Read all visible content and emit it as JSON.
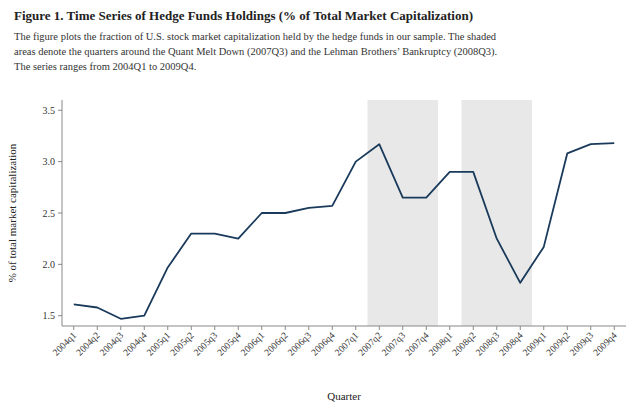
{
  "chart_data": {
    "type": "line",
    "title": "Figure 1. Time Series of Hedge Funds Holdings (% of Total Market Capitalization)",
    "caption": [
      "The figure plots the fraction of U.S. stock market capitalization held by the hedge funds in our sample. The shaded",
      "areas denote the quarters around the Quant Melt Down (2007Q3) and the Lehman Brothers’ Bankruptcy (2008Q3).",
      "The series ranges from 2004Q1 to 2009Q4."
    ],
    "x_label": "Quarter",
    "y_label": "% of total market capitalization",
    "categories": [
      "2004q1",
      "2004q2",
      "2004q3",
      "2004q4",
      "2005q1",
      "2005q2",
      "2005q3",
      "2005q4",
      "2006q1",
      "2006q2",
      "2006q3",
      "2006q4",
      "2007q1",
      "2007q2",
      "2007q3",
      "2007q4",
      "2008q1",
      "2008q2",
      "2008q3",
      "2008q4",
      "2009q1",
      "2009q2",
      "2009q3",
      "2009q4"
    ],
    "values": [
      1.61,
      1.58,
      1.47,
      1.5,
      1.97,
      2.3,
      2.3,
      2.25,
      2.5,
      2.5,
      2.55,
      2.57,
      3.0,
      3.17,
      2.65,
      2.65,
      2.9,
      2.9,
      2.25,
      1.82,
      2.17,
      3.08,
      3.17,
      3.18
    ],
    "color": "#1a3a5c",
    "shaded_regions": [
      {
        "start": "2007q2",
        "end": "2007q4",
        "color": "#e8e8e8"
      },
      {
        "start": "2008q2",
        "end": "2008q4",
        "color": "#e8e8e8"
      }
    ],
    "ylim": [
      1.4,
      3.6
    ],
    "yticks": [
      1.5,
      {
        "value": 2.0,
        "label": "2.0"
      },
      2.5,
      {
        "value": 3.0,
        "label": "3.0"
      },
      3.5
    ],
    "grid": false
  }
}
